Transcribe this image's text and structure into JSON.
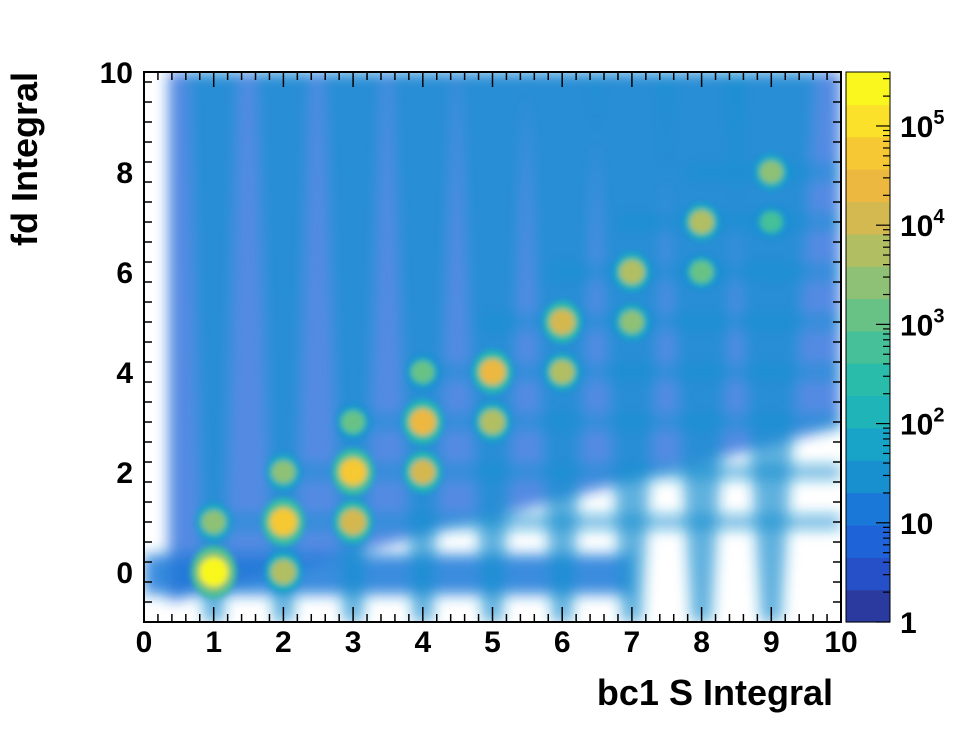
{
  "chart_data": {
    "type": "heatmap",
    "title": "",
    "xlabel": "bc1 S Integral",
    "ylabel": "fd Integral",
    "xlim": [
      0,
      10
    ],
    "ylim": [
      -1,
      10
    ],
    "x_ticks": [
      0,
      1,
      2,
      3,
      4,
      5,
      6,
      7,
      8,
      9,
      10
    ],
    "y_ticks": [
      0,
      2,
      4,
      6,
      8,
      10
    ],
    "colorbar": {
      "scale": "log",
      "range": [
        1,
        350000
      ],
      "ticks": [
        {
          "value": 1,
          "label": "1"
        },
        {
          "value": 10,
          "label": "10"
        },
        {
          "value": 100,
          "label": "10",
          "exp": "2"
        },
        {
          "value": 1000,
          "label": "10",
          "exp": "3"
        },
        {
          "value": 10000,
          "label": "10",
          "exp": "4"
        },
        {
          "value": 100000,
          "label": "10",
          "exp": "5"
        }
      ],
      "palette": [
        "#2a3a9e",
        "#2550c8",
        "#1e64d8",
        "#1a78d8",
        "#1890d0",
        "#18a3c8",
        "#1eb4b8",
        "#2abcaa",
        "#45c098",
        "#68c286",
        "#8ec175",
        "#b2be62",
        "#d4b850",
        "#ecb840",
        "#f6c833",
        "#fbe12a",
        "#f9f71d"
      ]
    },
    "peaks": [
      {
        "x": 1,
        "y": 0,
        "count": 200000
      },
      {
        "x": 1,
        "y": 1,
        "count": 3000
      },
      {
        "x": 2,
        "y": 0,
        "count": 8000
      },
      {
        "x": 2,
        "y": 1,
        "count": 60000
      },
      {
        "x": 2,
        "y": 2,
        "count": 2000
      },
      {
        "x": 3,
        "y": 1,
        "count": 15000
      },
      {
        "x": 3,
        "y": 2,
        "count": 45000
      },
      {
        "x": 3,
        "y": 3,
        "count": 1500
      },
      {
        "x": 4,
        "y": 2,
        "count": 9000
      },
      {
        "x": 4,
        "y": 3,
        "count": 30000
      },
      {
        "x": 4,
        "y": 4,
        "count": 1200
      },
      {
        "x": 5,
        "y": 3,
        "count": 6000
      },
      {
        "x": 5,
        "y": 4,
        "count": 20000
      },
      {
        "x": 6,
        "y": 4,
        "count": 4000
      },
      {
        "x": 6,
        "y": 5,
        "count": 12000
      },
      {
        "x": 7,
        "y": 5,
        "count": 2500
      },
      {
        "x": 7,
        "y": 6,
        "count": 7000
      },
      {
        "x": 8,
        "y": 6,
        "count": 1500
      },
      {
        "x": 8,
        "y": 7,
        "count": 4000
      },
      {
        "x": 9,
        "y": 7,
        "count": 800
      },
      {
        "x": 9,
        "y": 8,
        "count": 2000
      }
    ]
  }
}
